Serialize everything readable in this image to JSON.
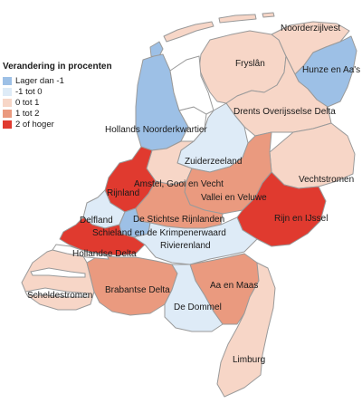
{
  "legend": {
    "title": "Verandering in procenten",
    "items": [
      {
        "key": "lt-1",
        "label": "Lager dan -1",
        "color": "#9dc0e6"
      },
      {
        "key": "m1-0",
        "label": "-1 tot 0",
        "color": "#deebf7"
      },
      {
        "key": "0-1",
        "label": "0 tot 1",
        "color": "#f7d6c7"
      },
      {
        "key": "1-2",
        "label": "1 tot 2",
        "color": "#ea9a7f"
      },
      {
        "key": "ge2",
        "label": "2 of hoger",
        "color": "#e03a2f"
      }
    ]
  },
  "regions": [
    {
      "id": "noorderzijlvest",
      "name": "Noorderzijlvest",
      "class": "0-1"
    },
    {
      "id": "fryslan",
      "name": "Fryslân",
      "class": "0-1"
    },
    {
      "id": "hunze",
      "name": "Hunze en Aa's",
      "class": "lt-1"
    },
    {
      "id": "hhnk",
      "name": "Hollands Noorderkwartier",
      "class": "lt-1"
    },
    {
      "id": "dod",
      "name": "Drents Overijsselse Delta",
      "class": "0-1"
    },
    {
      "id": "zuiderzeeland",
      "name": "Zuiderzeeland",
      "class": "m1-0"
    },
    {
      "id": "vechtstromen",
      "name": "Vechtstromen",
      "class": "0-1"
    },
    {
      "id": "agv",
      "name": "Amstel, Gooi en Vecht",
      "class": "0-1"
    },
    {
      "id": "rijnland",
      "name": "Rijnland",
      "class": "ge2"
    },
    {
      "id": "vallei",
      "name": "Vallei en Veluwe",
      "class": "1-2"
    },
    {
      "id": "rijnijssel",
      "name": "Rijn en IJssel",
      "class": "ge2"
    },
    {
      "id": "delfland",
      "name": "Delfland",
      "class": "m1-0"
    },
    {
      "id": "hdsr",
      "name": "De Stichtse Rijnlanden",
      "class": "1-2"
    },
    {
      "id": "skk",
      "name": "Schieland en de Krimpenerwaard",
      "class": "lt-1"
    },
    {
      "id": "hollandsedelta",
      "name": "Hollandse Delta",
      "class": "ge2"
    },
    {
      "id": "rivierenland",
      "name": "Rivierenland",
      "class": "m1-0"
    },
    {
      "id": "scheldestromen",
      "name": "Scheldestromen",
      "class": "0-1"
    },
    {
      "id": "brabantsedelta",
      "name": "Brabantse Delta",
      "class": "1-2"
    },
    {
      "id": "aaenmaas",
      "name": "Aa en Maas",
      "class": "1-2"
    },
    {
      "id": "dommel",
      "name": "De Dommel",
      "class": "m1-0"
    },
    {
      "id": "limburg",
      "name": "Limburg",
      "class": "0-1"
    }
  ]
}
